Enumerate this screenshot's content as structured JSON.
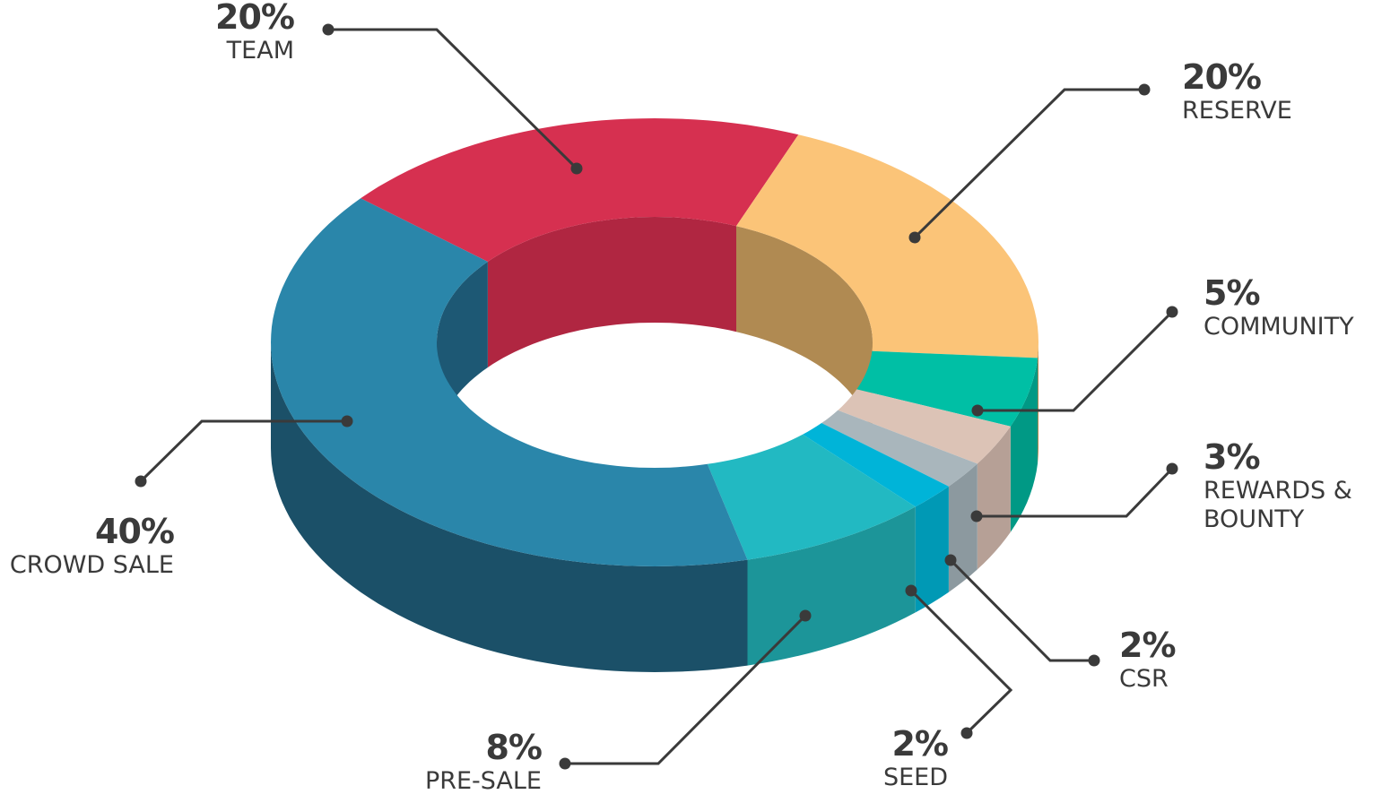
{
  "chart_data": {
    "type": "pie",
    "variant": "3d-donut",
    "title": "",
    "slices": [
      {
        "name": "TEAM",
        "value": 20,
        "label": "20%",
        "color": "#D63050",
        "inner_color": "#B02641"
      },
      {
        "name": "RESERVE",
        "value": 20,
        "label": "20%",
        "color": "#FBC478",
        "inner_color": "#B08A52",
        "side_color": "#B08A52"
      },
      {
        "name": "COMMUNITY",
        "value": 5,
        "label": "5%",
        "color": "#00BFA5",
        "side_color": "#009985"
      },
      {
        "name": "REWARDS &\nBOUNTY",
        "label_lines": [
          "REWARDS &",
          "BOUNTY"
        ],
        "value": 3,
        "label": "3%",
        "color": "#DCC3B6",
        "side_color": "#B6A096"
      },
      {
        "name": "CSR",
        "value": 2,
        "label": "2%",
        "color": "#A9B6BC",
        "side_color": "#8C999F"
      },
      {
        "name": "SEED",
        "value": 2,
        "label": "2%",
        "color": "#00B4D8",
        "side_color": "#0099B5"
      },
      {
        "name": "PRE-SALE",
        "value": 8,
        "label": "8%",
        "color": "#22B9C2",
        "side_color": "#1C9599"
      },
      {
        "name": "CROWD SALE",
        "value": 40,
        "label": "40%",
        "color": "#2A86AA",
        "inner_color": "#1D5874",
        "side_color": "#1B5068"
      }
    ]
  }
}
